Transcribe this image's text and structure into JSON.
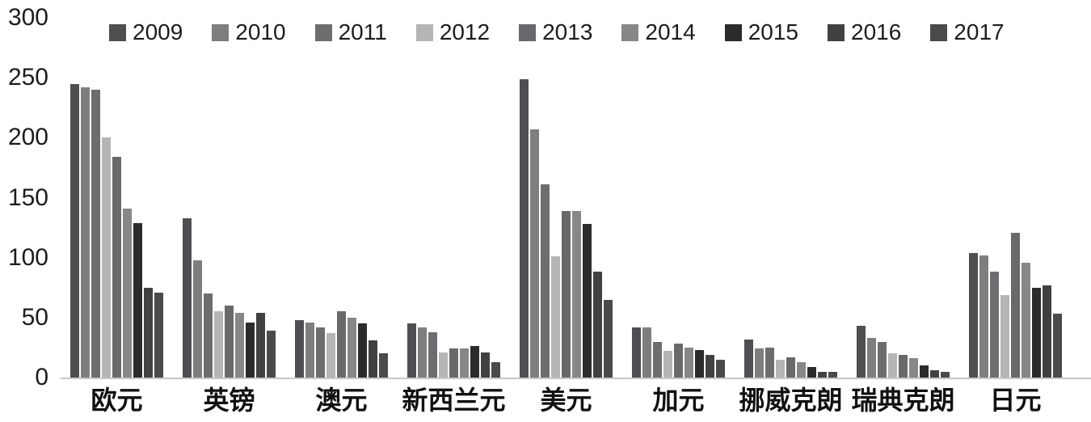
{
  "chart_data": {
    "type": "bar",
    "title": "",
    "xlabel": "",
    "ylabel": "",
    "categories": [
      "欧元",
      "英镑",
      "澳元",
      "新西兰元",
      "美元",
      "加元",
      "挪威克朗",
      "瑞典克朗",
      "日元"
    ],
    "series": [
      {
        "name": "2009",
        "color": "#4f4f52",
        "values": [
          245,
          133,
          48,
          45,
          249,
          42,
          32,
          43,
          104
        ]
      },
      {
        "name": "2010",
        "color": "#7e7e81",
        "values": [
          242,
          98,
          46,
          42,
          207,
          42,
          24,
          33,
          102
        ]
      },
      {
        "name": "2011",
        "color": "#6d6d70",
        "values": [
          240,
          70,
          42,
          38,
          161,
          30,
          25,
          30,
          88
        ]
      },
      {
        "name": "2012",
        "color": "#b5b5b7",
        "values": [
          200,
          55,
          37,
          21,
          101,
          22,
          15,
          20,
          69
        ]
      },
      {
        "name": "2013",
        "color": "#69696c",
        "values": [
          184,
          60,
          55,
          24,
          139,
          28,
          17,
          19,
          121
        ]
      },
      {
        "name": "2014",
        "color": "#87878a",
        "values": [
          141,
          54,
          50,
          24,
          139,
          25,
          13,
          16,
          96
        ]
      },
      {
        "name": "2015",
        "color": "#2b2b2e",
        "values": [
          129,
          46,
          45,
          26,
          128,
          23,
          9,
          10,
          75
        ]
      },
      {
        "name": "2016",
        "color": "#414144",
        "values": [
          75,
          54,
          31,
          21,
          88,
          19,
          5,
          6,
          77
        ]
      },
      {
        "name": "2017",
        "color": "#4a4a4d",
        "values": [
          71,
          39,
          20,
          13,
          65,
          15,
          5,
          5,
          53
        ]
      }
    ],
    "ylim": [
      0,
      300
    ],
    "yticks": [
      0,
      50,
      100,
      150,
      200,
      250,
      300
    ],
    "legend_position": "top",
    "grid": false,
    "axis_color": "#c6c6c6",
    "text_color": "#1c1c1c"
  }
}
